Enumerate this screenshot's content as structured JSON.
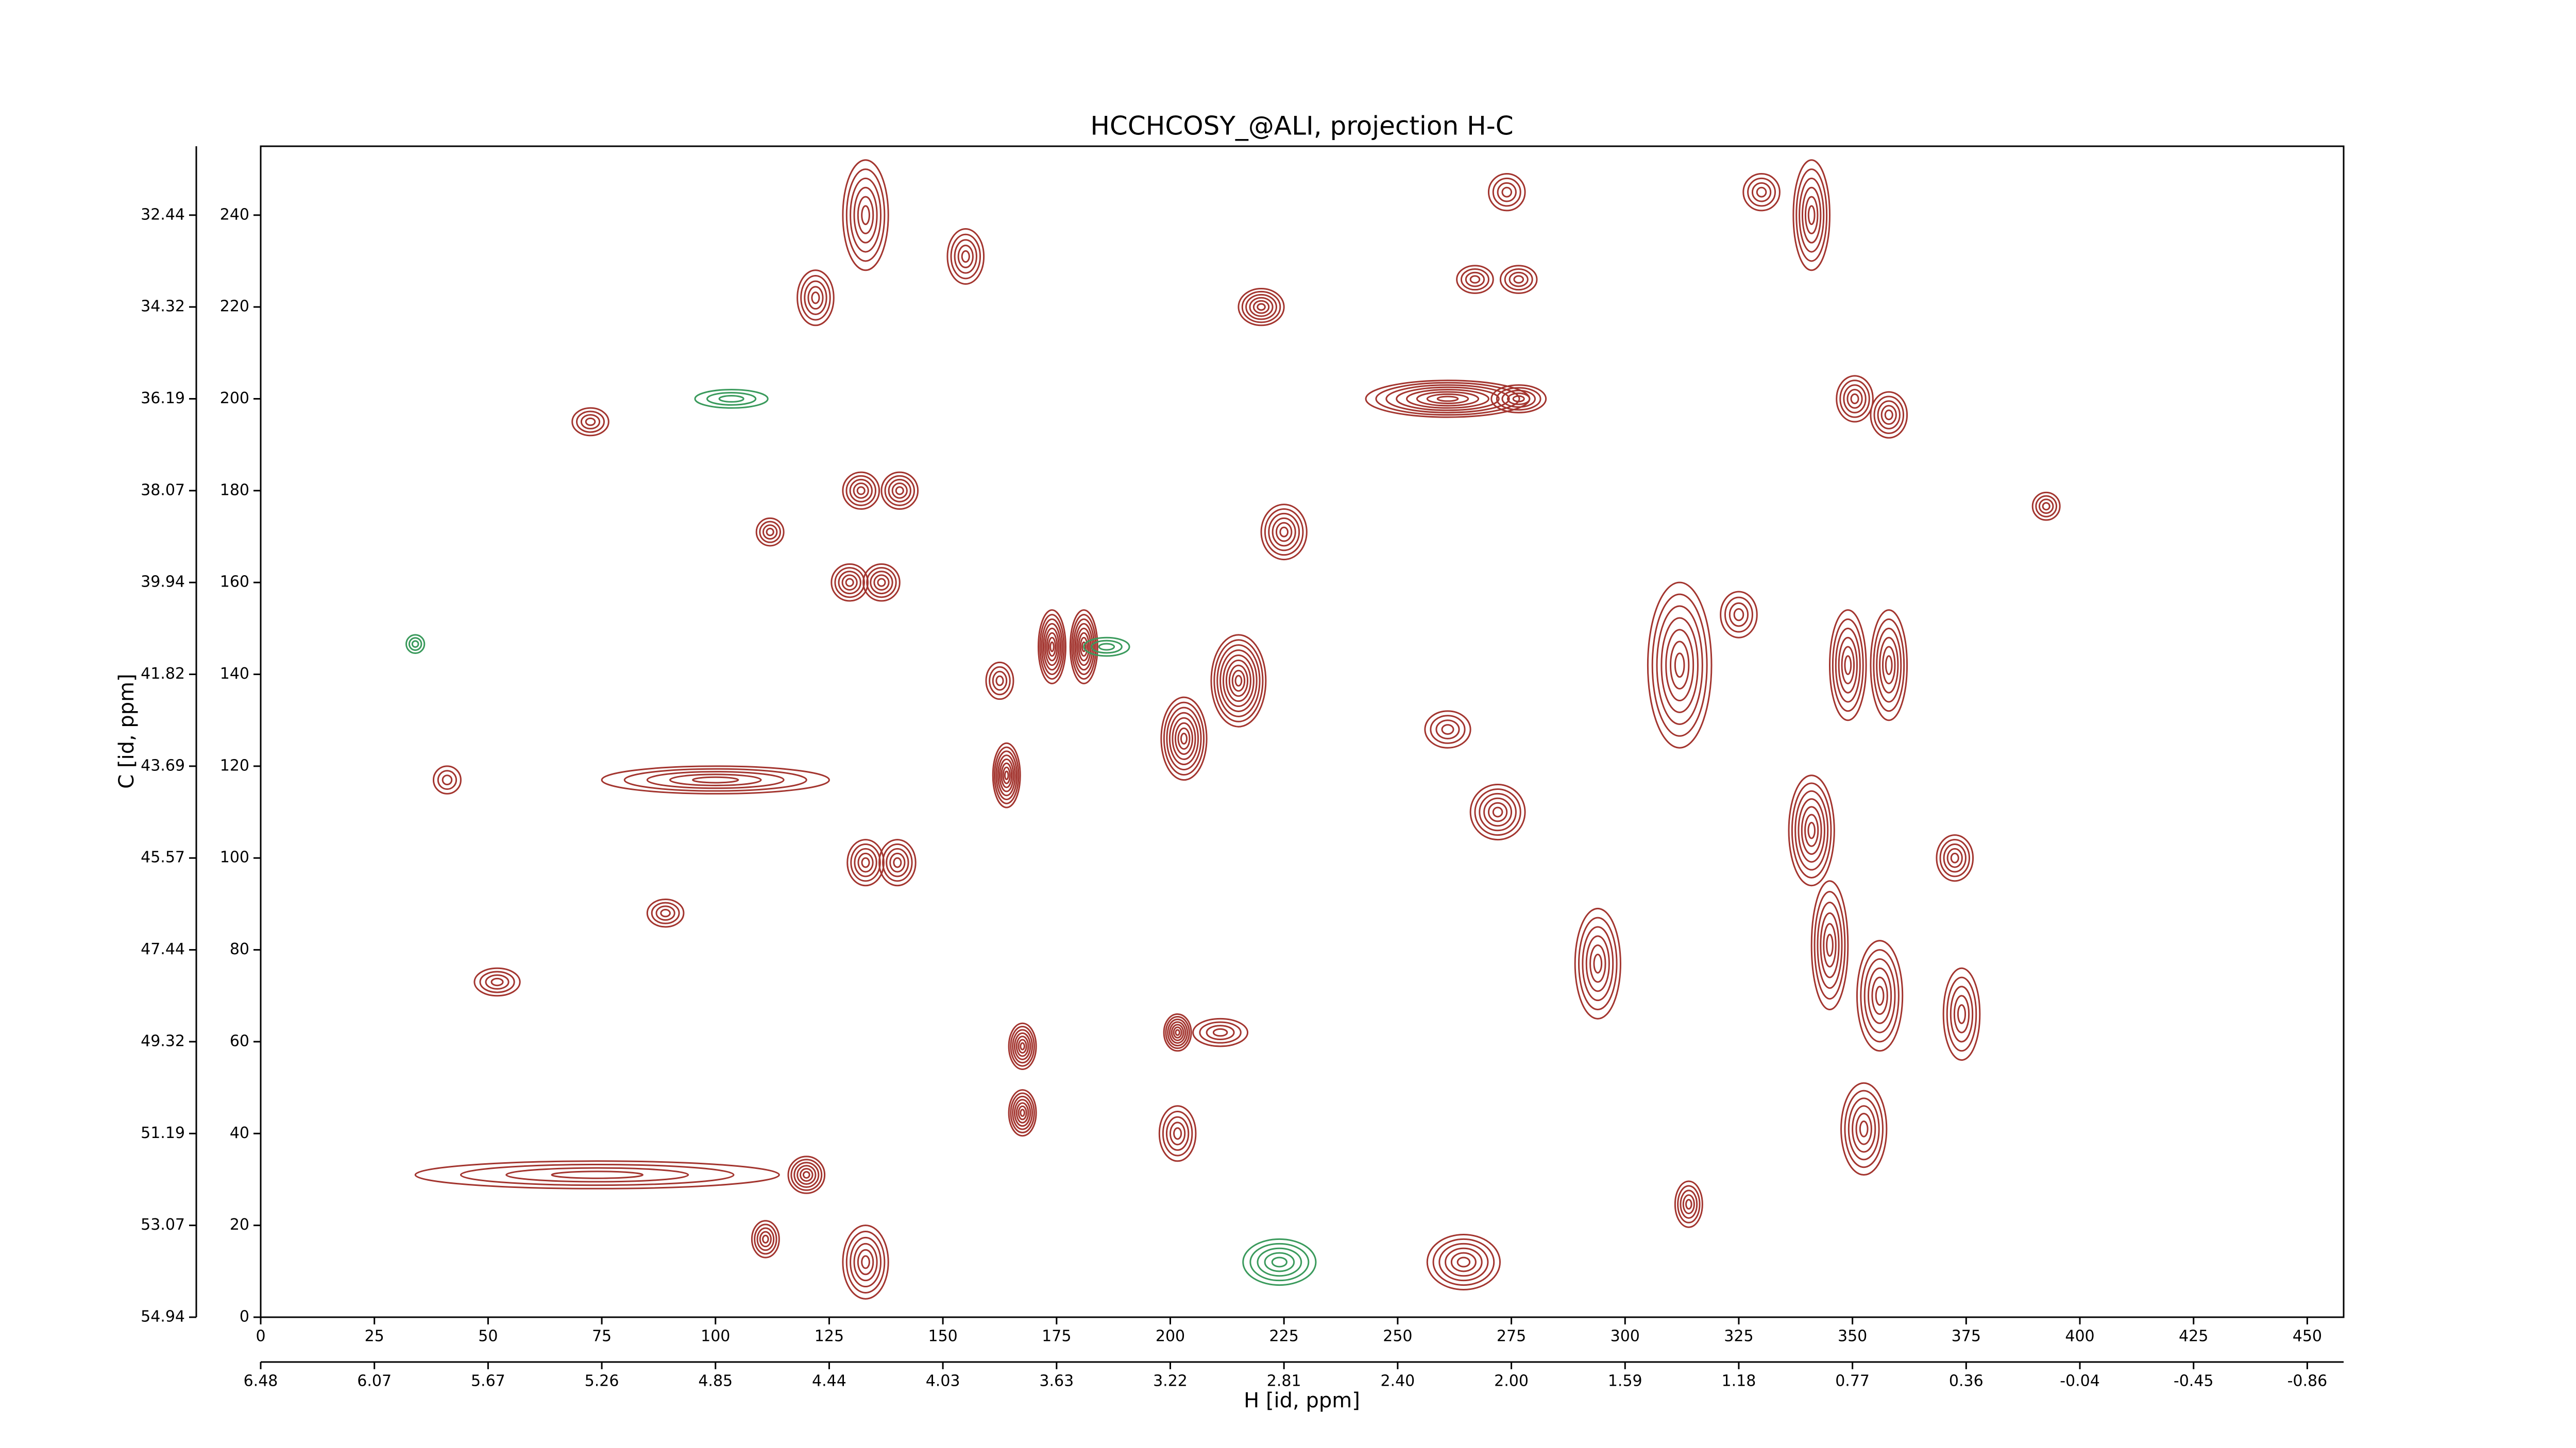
{
  "chart_data": {
    "type": "contour",
    "title": "HCCHCOSY_@ALI, projection H-C",
    "xlabel": "H [id, ppm]",
    "ylabel": "C [id, ppm]",
    "xlim": [
      0,
      458
    ],
    "ylim": [
      0,
      255
    ],
    "xticks": [
      0,
      25,
      50,
      75,
      100,
      125,
      150,
      175,
      200,
      225,
      250,
      275,
      300,
      325,
      350,
      375,
      400,
      425,
      450
    ],
    "yticks": [
      0,
      20,
      40,
      60,
      80,
      100,
      120,
      140,
      160,
      180,
      200,
      220,
      240
    ],
    "x2ticks": [
      {
        "value": 0,
        "label": "6.48"
      },
      {
        "value": 25,
        "label": "6.07"
      },
      {
        "value": 50,
        "label": "5.67"
      },
      {
        "value": 75,
        "label": "5.26"
      },
      {
        "value": 100,
        "label": "4.85"
      },
      {
        "value": 125,
        "label": "4.44"
      },
      {
        "value": 150,
        "label": "4.03"
      },
      {
        "value": 175,
        "label": "3.63"
      },
      {
        "value": 200,
        "label": "3.22"
      },
      {
        "value": 225,
        "label": "2.81"
      },
      {
        "value": 250,
        "label": "2.40"
      },
      {
        "value": 275,
        "label": "2.00"
      },
      {
        "value": 300,
        "label": "1.59"
      },
      {
        "value": 325,
        "label": "1.18"
      },
      {
        "value": 350,
        "label": "0.77"
      },
      {
        "value": 375,
        "label": "0.36"
      },
      {
        "value": 400,
        "label": "-0.04"
      },
      {
        "value": 425,
        "label": "-0.45"
      },
      {
        "value": 450,
        "label": "-0.86"
      }
    ],
    "y2ticks": [
      {
        "value": 0,
        "label": "54.94"
      },
      {
        "value": 20,
        "label": "53.07"
      },
      {
        "value": 40,
        "label": "51.19"
      },
      {
        "value": 60,
        "label": "49.32"
      },
      {
        "value": 80,
        "label": "47.44"
      },
      {
        "value": 100,
        "label": "45.57"
      },
      {
        "value": 120,
        "label": "43.69"
      },
      {
        "value": 140,
        "label": "41.82"
      },
      {
        "value": 160,
        "label": "39.94"
      },
      {
        "value": 180,
        "label": "38.07"
      },
      {
        "value": 200,
        "label": "36.19"
      },
      {
        "value": 220,
        "label": "34.32"
      },
      {
        "value": 240,
        "label": "32.44"
      }
    ],
    "positive_color": "#a3352f",
    "negative_color": "#3a9a5c",
    "peaks": {
      "x": [
        174,
        181,
        186,
        164,
        100,
        167.5,
        167.5,
        201.6,
        211,
        201.6,
        203,
        215,
        225,
        220,
        261,
        276.6,
        267,
        276.6,
        120,
        112,
        133,
        140,
        129.5,
        136.5,
        132,
        140.5,
        162.5,
        341,
        349,
        358,
        341,
        345,
        356,
        374,
        352.5,
        372.5,
        314,
        312,
        294,
        272,
        325,
        350.5,
        358,
        330,
        274,
        133,
        155,
        122,
        72.5,
        52,
        89,
        41,
        111,
        133,
        264.5,
        224,
        392.6,
        103.5,
        34,
        74,
        261
      ],
      "y": [
        146,
        146,
        146,
        118,
        117,
        59,
        44.5,
        62,
        62,
        40,
        126,
        138.6,
        171,
        220,
        200,
        200,
        226,
        226,
        31,
        171,
        99,
        99,
        160,
        160,
        180,
        180,
        138.6,
        240,
        142,
        142,
        106,
        81,
        70,
        66,
        41,
        100,
        24.6,
        142,
        77,
        110,
        153,
        200,
        196.5,
        245,
        245,
        240,
        231,
        222,
        195,
        73,
        88,
        117,
        17,
        12,
        12,
        12,
        176.6,
        200,
        146.6,
        31,
        128
      ],
      "rx": [
        3,
        3,
        5,
        3,
        25,
        3,
        3,
        3,
        6,
        4,
        5,
        6,
        5,
        5,
        18,
        6,
        4,
        4,
        4,
        3,
        4,
        4,
        4,
        4,
        4,
        4,
        3,
        4,
        4,
        4,
        5,
        4,
        5,
        4,
        5,
        4,
        3,
        7,
        5,
        6,
        4,
        4,
        4,
        4,
        4,
        5,
        4,
        4,
        4,
        5,
        4,
        3,
        3,
        5,
        8,
        8,
        3,
        8,
        2,
        40,
        5
      ],
      "ry": [
        8,
        8,
        2,
        7,
        3,
        5,
        5,
        4,
        3,
        6,
        9,
        10,
        6,
        4,
        4,
        3,
        3,
        3,
        4,
        3,
        5,
        5,
        4,
        4,
        4,
        4,
        4,
        12,
        12,
        12,
        12,
        14,
        12,
        10,
        10,
        5,
        5,
        18,
        12,
        6,
        5,
        5,
        5,
        4,
        4,
        12,
        6,
        6,
        3,
        3,
        3,
        3,
        4,
        8,
        6,
        5,
        3,
        2,
        2,
        3,
        4
      ],
      "levels": [
        8,
        8,
        3,
        8,
        5,
        7,
        7,
        7,
        4,
        5,
        8,
        9,
        6,
        6,
        8,
        5,
        4,
        4,
        6,
        4,
        5,
        5,
        5,
        5,
        5,
        5,
        4,
        6,
        6,
        6,
        7,
        6,
        6,
        5,
        6,
        5,
        5,
        7,
        6,
        6,
        4,
        5,
        5,
        4,
        4,
        6,
        5,
        5,
        4,
        4,
        4,
        3,
        5,
        6,
        6,
        5,
        4,
        3,
        3,
        4,
        4
      ],
      "sign": [
        1,
        1,
        -1,
        1,
        1,
        1,
        1,
        1,
        1,
        1,
        1,
        1,
        1,
        1,
        1,
        1,
        1,
        1,
        1,
        1,
        1,
        1,
        1,
        1,
        1,
        1,
        1,
        1,
        1,
        1,
        1,
        1,
        1,
        1,
        1,
        1,
        1,
        1,
        1,
        1,
        1,
        1,
        1,
        1,
        1,
        1,
        1,
        1,
        1,
        1,
        1,
        1,
        1,
        1,
        1,
        -1,
        1,
        -1,
        -1,
        1,
        1
      ]
    }
  }
}
